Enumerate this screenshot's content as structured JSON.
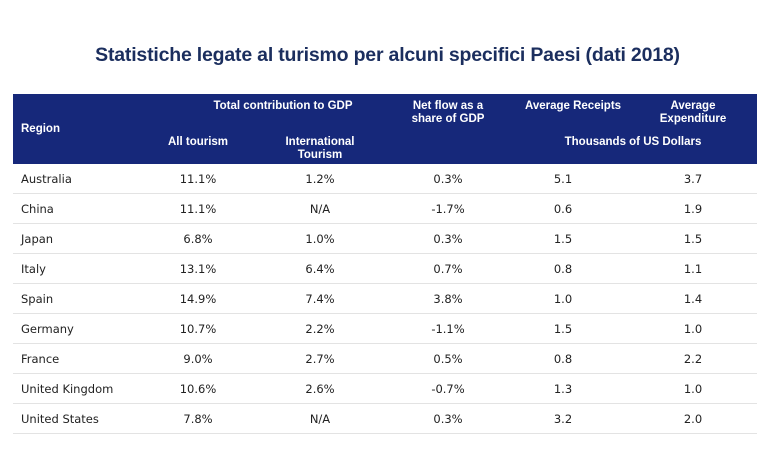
{
  "title": "Statistiche legate al turismo per alcuni specifici Paesi (dati 2018)",
  "colors": {
    "header_bg": "#16287a",
    "title": "#1b2e5e",
    "header_text": "#ffffff"
  },
  "header": {
    "region": "Region",
    "total_contribution": "Total contribution to GDP",
    "all_tourism": "All tourism",
    "international_tourism_line1": "International",
    "international_tourism_line2": "Tourism",
    "net_flow_line1": "Net flow as a",
    "net_flow_line2": "share of GDP",
    "average_receipts": "Average Receipts",
    "average_expenditure_line1": "Average",
    "average_expenditure_line2": "Expenditure",
    "thousands_usd": "Thousands of US Dollars"
  },
  "rows": [
    {
      "region": "Australia",
      "all_tourism": "11.1%",
      "international": "1.2%",
      "net_flow": "0.3%",
      "receipts": "5.1",
      "expenditure": "3.7"
    },
    {
      "region": "China",
      "all_tourism": "11.1%",
      "international": "N/A",
      "net_flow": "-1.7%",
      "receipts": "0.6",
      "expenditure": "1.9"
    },
    {
      "region": "Japan",
      "all_tourism": "6.8%",
      "international": "1.0%",
      "net_flow": "0.3%",
      "receipts": "1.5",
      "expenditure": "1.5"
    },
    {
      "region": "Italy",
      "all_tourism": "13.1%",
      "international": "6.4%",
      "net_flow": "0.7%",
      "receipts": "0.8",
      "expenditure": "1.1"
    },
    {
      "region": "Spain",
      "all_tourism": "14.9%",
      "international": "7.4%",
      "net_flow": "3.8%",
      "receipts": "1.0",
      "expenditure": "1.4"
    },
    {
      "region": "Germany",
      "all_tourism": "10.7%",
      "international": "2.2%",
      "net_flow": "-1.1%",
      "receipts": "1.5",
      "expenditure": "1.0"
    },
    {
      "region": "France",
      "all_tourism": "9.0%",
      "international": "2.7%",
      "net_flow": "0.5%",
      "receipts": "0.8",
      "expenditure": "2.2"
    },
    {
      "region": "United Kingdom",
      "all_tourism": "10.6%",
      "international": "2.6%",
      "net_flow": "-0.7%",
      "receipts": "1.3",
      "expenditure": "1.0"
    },
    {
      "region": "United States",
      "all_tourism": "7.8%",
      "international": "N/A",
      "net_flow": "0.3%",
      "receipts": "3.2",
      "expenditure": "2.0"
    }
  ]
}
